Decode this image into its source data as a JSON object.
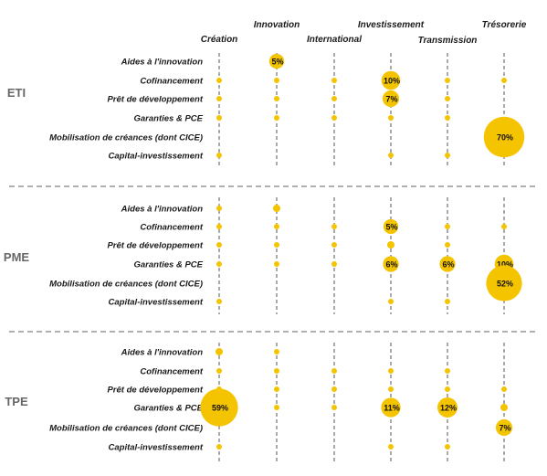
{
  "chart_data": {
    "type": "bubble-matrix",
    "colors": {
      "bubble": "#F5C400",
      "separator": "#7f7f7f",
      "column_line": "#555555",
      "group_label": "#666666"
    },
    "columns": [
      "Création",
      "Innovation",
      "International",
      "Investissement",
      "Transmission",
      "Trésorerie"
    ],
    "rows": [
      "Aides à l'innovation",
      "Cofinancement",
      "Prêt de développement",
      "Garanties & PCE",
      "Mobilisation de créances (dont CICE)",
      "Capital-investissement"
    ],
    "groups": [
      {
        "name": "ETI",
        "cells": [
          [
            null,
            5,
            null,
            null,
            null,
            null
          ],
          [
            1,
            1,
            1,
            10,
            1,
            1
          ],
          [
            1,
            1,
            1,
            7,
            1,
            null
          ],
          [
            1,
            1,
            1,
            1,
            1,
            null
          ],
          [
            null,
            null,
            null,
            null,
            null,
            70
          ],
          [
            1,
            null,
            null,
            1,
            1,
            null
          ]
        ],
        "labels": [
          [
            null,
            "5%",
            null,
            null,
            null,
            null
          ],
          [
            null,
            null,
            null,
            "10%",
            null,
            null
          ],
          [
            null,
            null,
            null,
            "7%",
            null,
            null
          ],
          [
            null,
            null,
            null,
            null,
            null,
            null
          ],
          [
            null,
            null,
            null,
            null,
            null,
            "70%"
          ],
          [
            null,
            null,
            null,
            null,
            null,
            null
          ]
        ]
      },
      {
        "name": "PME",
        "cells": [
          [
            1,
            2,
            null,
            null,
            null,
            null
          ],
          [
            1,
            1,
            1,
            5,
            1,
            1
          ],
          [
            1,
            1,
            1,
            2,
            1,
            null
          ],
          [
            1,
            1,
            1,
            6,
            6,
            10
          ],
          [
            null,
            null,
            null,
            null,
            null,
            52
          ],
          [
            1,
            null,
            null,
            1,
            1,
            null
          ]
        ],
        "labels": [
          [
            null,
            null,
            null,
            null,
            null,
            null
          ],
          [
            null,
            null,
            null,
            "5%",
            null,
            null
          ],
          [
            null,
            null,
            null,
            null,
            null,
            null
          ],
          [
            null,
            null,
            null,
            "6%",
            "6%",
            "10%"
          ],
          [
            null,
            null,
            null,
            null,
            null,
            "52%"
          ],
          [
            null,
            null,
            null,
            null,
            null,
            null
          ]
        ]
      },
      {
        "name": "TPE",
        "cells": [
          [
            2,
            1,
            null,
            null,
            null,
            null
          ],
          [
            1,
            1,
            1,
            1,
            1,
            null
          ],
          [
            1,
            1,
            1,
            1,
            1,
            1
          ],
          [
            59,
            1,
            1,
            11,
            12,
            2
          ],
          [
            null,
            null,
            null,
            null,
            null,
            7
          ],
          [
            1,
            null,
            null,
            1,
            1,
            null
          ]
        ],
        "labels": [
          [
            null,
            null,
            null,
            null,
            null,
            null
          ],
          [
            null,
            null,
            null,
            null,
            null,
            null
          ],
          [
            null,
            null,
            null,
            null,
            null,
            null
          ],
          [
            "59%",
            null,
            null,
            "11%",
            "12%",
            null
          ],
          [
            null,
            null,
            null,
            null,
            null,
            "7%"
          ],
          [
            null,
            null,
            null,
            null,
            null,
            null
          ]
        ]
      }
    ]
  }
}
